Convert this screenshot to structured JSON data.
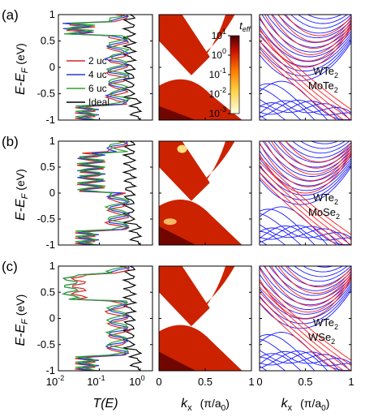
{
  "figure": {
    "panel_labels": [
      "(a)",
      "(b)",
      "(c)"
    ],
    "y_label_main": "E-E",
    "y_label_sub": "F",
    "y_label_unit": "(eV)",
    "y_ticks": [
      "1",
      "0.5",
      "0",
      "-0.5",
      "-1"
    ],
    "transmission_x_label": "T(E)",
    "transmission_x_ticks": [
      {
        "base": "10",
        "exp": "-2"
      },
      {
        "base": "10",
        "exp": "-1"
      },
      {
        "base": "10",
        "exp": "0"
      }
    ],
    "k_label_main": "k",
    "k_label_sub": "x",
    "k_label_unit_left": "(π/a",
    "k_label_unit_sub": "0",
    "k_label_unit_right": ")",
    "k_ticks": [
      "0",
      "0.5",
      "1"
    ],
    "colorbar": {
      "title_main": "t",
      "title_sub": "eff",
      "ticks": [
        {
          "base": "10",
          "exp": "1"
        },
        {
          "base": "10",
          "exp": "0"
        },
        {
          "base": "10",
          "exp": "-1"
        },
        {
          "base": "10",
          "exp": "-2"
        },
        {
          "base": "10",
          "exp": "-3"
        }
      ]
    },
    "legend": [
      "2 uc",
      "4 uc",
      "6 uc",
      "Ideal"
    ],
    "rows": [
      {
        "label": "(a)",
        "mat1_base": "WTe",
        "mat1_sub": "2",
        "mat2_base": "MoTe",
        "mat2_sub": "2"
      },
      {
        "label": "(b)",
        "mat1_base": "WTe",
        "mat1_sub": "2",
        "mat2_base": "MoSe",
        "mat2_sub": "2"
      },
      {
        "label": "(c)",
        "mat1_base": "WTe",
        "mat1_sub": "2",
        "mat2_base": "WSe",
        "mat2_sub": "2"
      }
    ],
    "colors": {
      "s2uc": "#d62728",
      "s4uc": "#1f3fd6",
      "s6uc": "#2ca02c",
      "ideal": "#000000",
      "mat1": "#ff1a1a",
      "mat2": "#1a1aff",
      "heat_dark": "#5a0000",
      "heat_mid": "#cc2200",
      "heat_light": "#ffe080"
    }
  },
  "chart_data": {
    "type": "line",
    "panels": "3 rows × 3 columns: transmission T(E) (log x), effective transmission map t_eff(E,kx), band structures",
    "ylim": [
      -1,
      1
    ],
    "transmission_xlim_log10": [
      -2,
      0.3
    ],
    "kx_lim": [
      0,
      1
    ],
    "colorbar_log10_range": [
      -3,
      1
    ],
    "series": [
      {
        "name": "2 uc",
        "row": "a",
        "E": [
          -1,
          -0.8,
          -0.6,
          -0.4,
          -0.2,
          0,
          0.2,
          0.4,
          0.6,
          0.7,
          0.8,
          0.9,
          1
        ],
        "log10T": [
          -1.1,
          -0.9,
          -0.6,
          -0.4,
          -0.35,
          -0.4,
          -0.5,
          -0.55,
          -0.45,
          -1.0,
          -1.4,
          -0.7,
          -0.5
        ]
      },
      {
        "name": "Ideal",
        "row": "a",
        "E": [
          -1,
          -0.8,
          -0.6,
          -0.4,
          -0.2,
          0,
          0.2,
          0.4,
          0.6,
          0.8,
          1
        ],
        "log10T": [
          -0.3,
          -0.25,
          -0.2,
          -0.25,
          -0.3,
          -0.3,
          -0.25,
          -0.2,
          -0.3,
          -0.2,
          -0.1
        ]
      }
    ]
  }
}
